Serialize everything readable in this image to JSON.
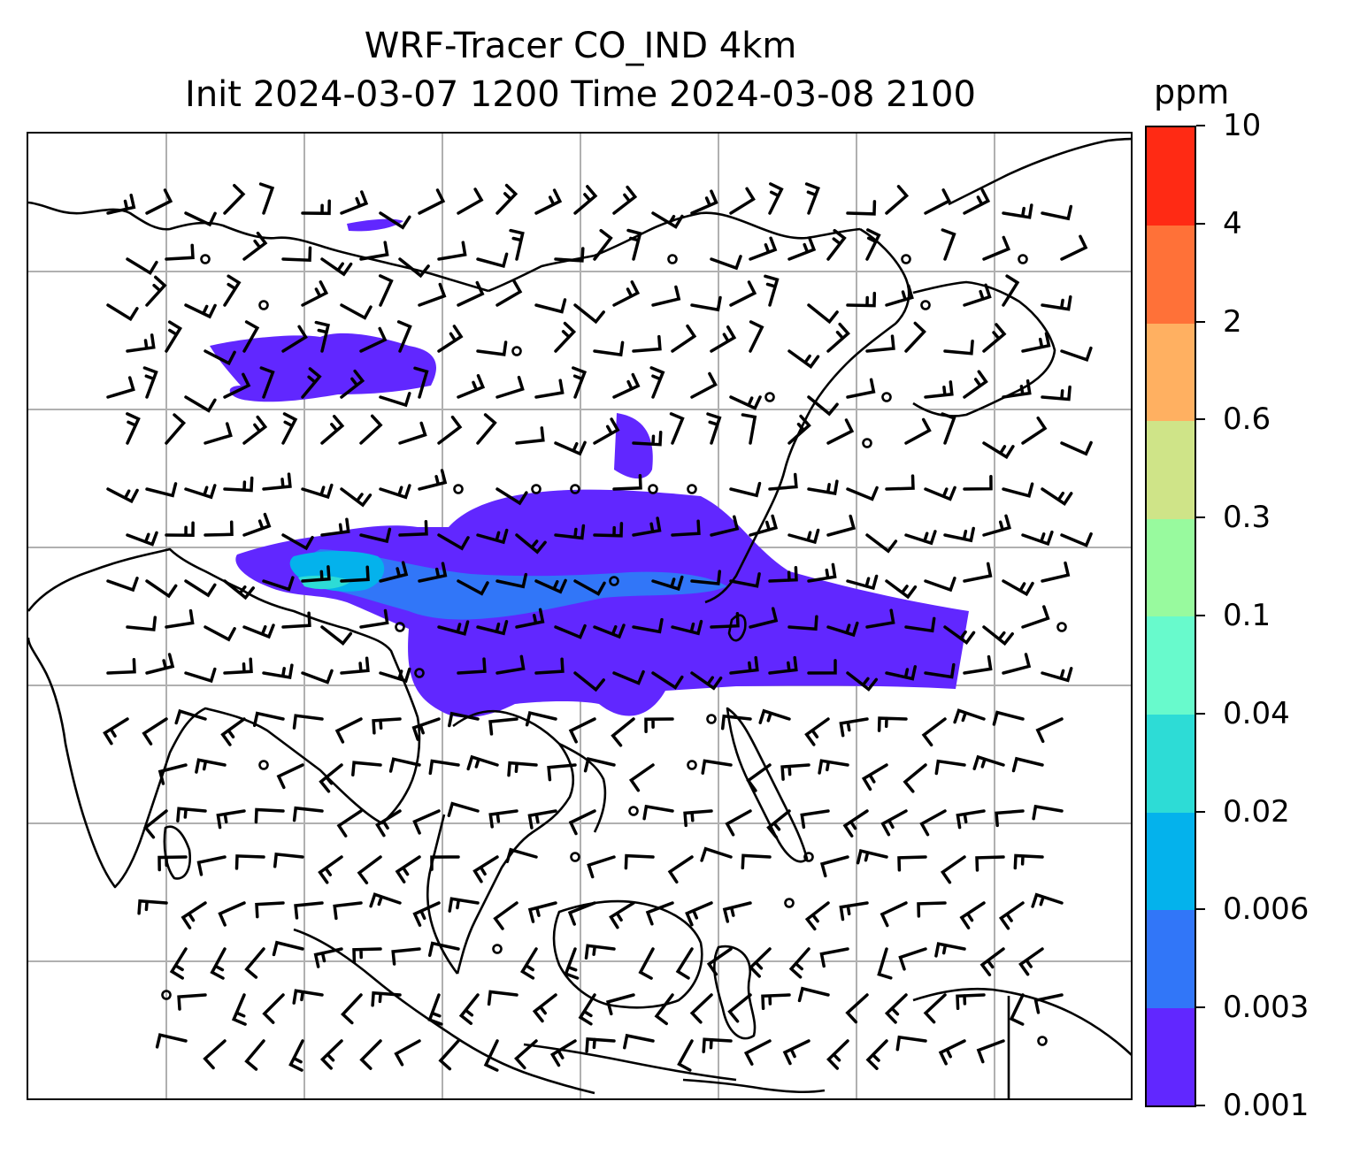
{
  "title": {
    "line1": "WRF-Tracer CO_IND 4km",
    "line2": "Init 2024-03-07 1200 Time 2024-03-08 2100"
  },
  "colorbar": {
    "units": "ppm",
    "levels": [
      "0.001",
      "0.003",
      "0.006",
      "0.02",
      "0.04",
      "0.1",
      "0.3",
      "0.6",
      "2",
      "4",
      "10"
    ],
    "colors": [
      "#6127ff",
      "#3176f8",
      "#04b2ec",
      "#2ddcd6",
      "#68facc",
      "#98fa9e",
      "#cfe488",
      "#ffb061",
      "#ff7138",
      "#ff2a14"
    ]
  },
  "map": {
    "gridlines": true,
    "grid_color": "#b0b0b0",
    "coastline_color": "#000000",
    "barb_color": "#000000",
    "plume_colors": {
      "lowest": "#6127ff",
      "low": "#3176f8",
      "mid": "#04b2ec",
      "upper": "#2ddcd6"
    }
  }
}
